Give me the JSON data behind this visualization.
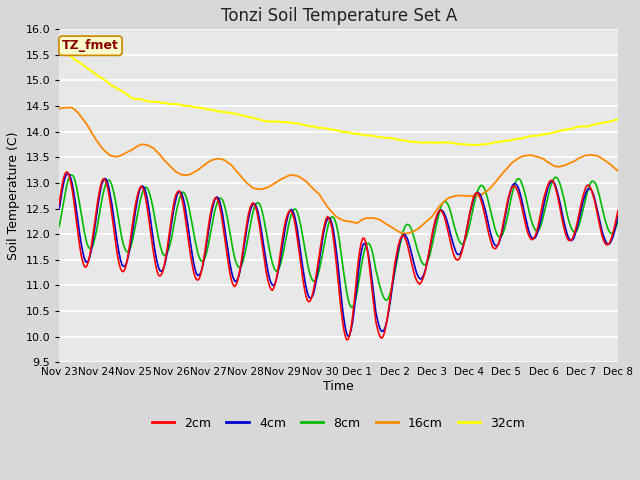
{
  "title": "Tonzi Soil Temperature Set A",
  "xlabel": "Time",
  "ylabel": "Soil Temperature (C)",
  "ylim": [
    9.5,
    16.0
  ],
  "fig_bg_color": "#d8d8d8",
  "plot_bg_color": "#e8e8e8",
  "grid_color": "#ffffff",
  "annotation_text": "TZ_fmet",
  "annotation_bg": "#ffffcc",
  "annotation_border": "#cc8800",
  "annotation_text_color": "#8b0000",
  "legend_labels": [
    "2cm",
    "4cm",
    "8cm",
    "16cm",
    "32cm"
  ],
  "legend_colors": [
    "#ff0000",
    "#0000cc",
    "#00bb00",
    "#ff8800",
    "#ffff00"
  ],
  "tick_labels": [
    "Nov 23",
    "Nov 24",
    "Nov 25",
    "Nov 26",
    "Nov 27",
    "Nov 28",
    "Nov 29",
    "Nov 30",
    "Dec 1",
    "Dec 2",
    "Dec 3",
    "Dec 4",
    "Dec 5",
    "Dec 6",
    "Dec 7",
    "Dec 8"
  ],
  "title_fontsize": 12,
  "axis_label_fontsize": 9,
  "tick_fontsize": 8
}
